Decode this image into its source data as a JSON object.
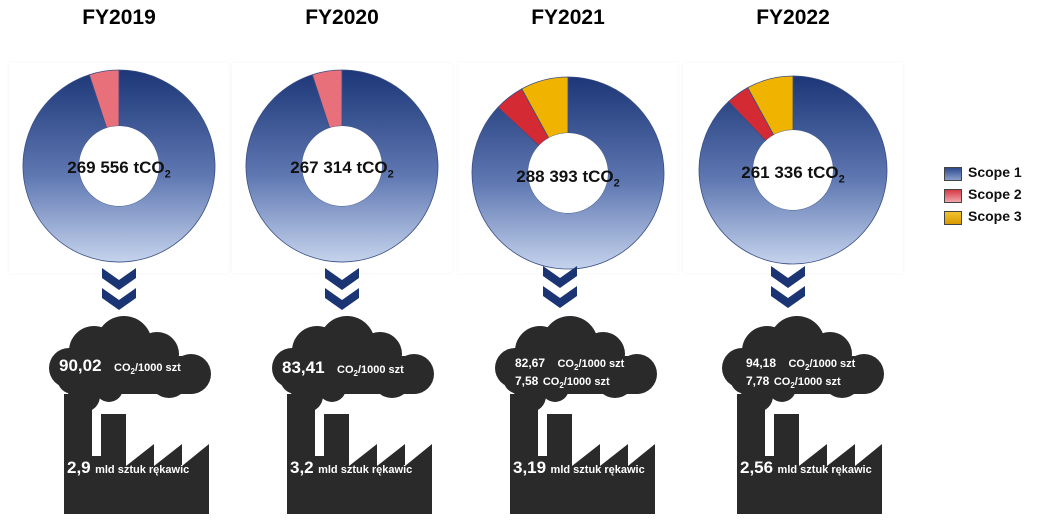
{
  "chart_data": [
    {
      "type": "pie",
      "title": "FY2019",
      "total_label": "269 556 tCO",
      "total_sub": "2",
      "slices": [
        {
          "name": "Scope 1",
          "value": 95
        },
        {
          "name": "Scope 2",
          "value": 5
        },
        {
          "name": "Scope 3",
          "value": 0
        }
      ],
      "factory": {
        "intensity_lines": [
          {
            "value": "90,02",
            "unit": "CO",
            "sub": "2",
            "suffix": "/1000 szt"
          }
        ],
        "production_value": "2,9",
        "production_unit": "mld sztuk rękawic"
      }
    },
    {
      "type": "pie",
      "title": "FY2020",
      "total_label": "267 314 tCO",
      "total_sub": "2",
      "slices": [
        {
          "name": "Scope 1",
          "value": 95
        },
        {
          "name": "Scope 2",
          "value": 5
        },
        {
          "name": "Scope 3",
          "value": 0
        }
      ],
      "factory": {
        "intensity_lines": [
          {
            "value": "83,41",
            "unit": "CO",
            "sub": "2",
            "suffix": "/1000 szt"
          }
        ],
        "production_value": "3,2",
        "production_unit": "mld sztuk rękawic"
      }
    },
    {
      "type": "pie",
      "title": "FY2021",
      "total_label": "288 393 tCO",
      "total_sub": "2",
      "slices": [
        {
          "name": "Scope 1",
          "value": 87
        },
        {
          "name": "Scope 2",
          "value": 5
        },
        {
          "name": "Scope 3",
          "value": 8
        }
      ],
      "factory": {
        "intensity_lines": [
          {
            "value": "82,67",
            "unit": "CO",
            "sub": "2",
            "suffix": "/1000 szt"
          },
          {
            "value": "7,58",
            "unit": "CO",
            "sub": "2",
            "suffix": "/1000 szt"
          }
        ],
        "production_value": "3,19",
        "production_unit": "mld sztuk rękawic"
      }
    },
    {
      "type": "pie",
      "title": "FY2022",
      "total_label": "261 336 tCO",
      "total_sub": "2",
      "slices": [
        {
          "name": "Scope 1",
          "value": 88
        },
        {
          "name": "Scope 2",
          "value": 4
        },
        {
          "name": "Scope 3",
          "value": 8
        }
      ],
      "factory": {
        "intensity_lines": [
          {
            "value": "94,18",
            "unit": "CO",
            "sub": "2",
            "suffix": "/1000 szt"
          },
          {
            "value": "7,78",
            "unit": "CO",
            "sub": "2",
            "suffix": "/1000 szt"
          }
        ],
        "production_value": "2,56",
        "production_unit": "mld sztuk rękawic"
      }
    }
  ],
  "legend": [
    {
      "label": "Scope 1",
      "color": "#2e4a8c"
    },
    {
      "label": "Scope 2",
      "color": "#d63a45"
    },
    {
      "label": "Scope 3",
      "color": "#f2c230"
    }
  ],
  "colors": {
    "scope1_dark": "#1c3677",
    "scope1_light": "#c5d3ec",
    "scope2": "#d42a33",
    "scope2_2019": "#e8707a",
    "scope3": "#f0b400",
    "factory": "#2a2a2a",
    "chevron": "#1b3474"
  }
}
